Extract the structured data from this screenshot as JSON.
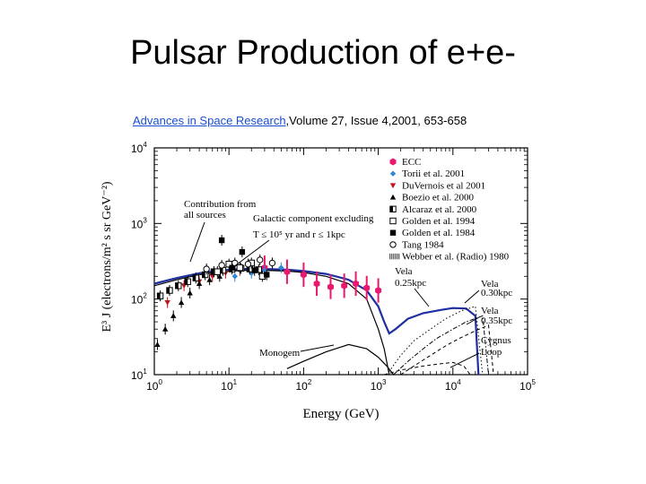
{
  "slide": {
    "title": "Pulsar Production of e+e-",
    "citation_link": "Advances in Space Research",
    "citation_rest": ",Volume 27, Issue 4,2001,  653-658"
  },
  "chart_data": {
    "type": "scatter",
    "xlabel": "Energy (GeV)",
    "ylabel": "E³ J (electrons/m² s sr GeV⁻²)",
    "xscale": "log",
    "yscale": "log",
    "xlim": [
      1,
      100000
    ],
    "ylim": [
      10,
      10000
    ],
    "x_ticks": [
      {
        "base": "10",
        "exp": "0",
        "value": 1
      },
      {
        "base": "10",
        "exp": "1",
        "value": 10
      },
      {
        "base": "10",
        "exp": "2",
        "value": 100
      },
      {
        "base": "10",
        "exp": "3",
        "value": 1000
      },
      {
        "base": "10",
        "exp": "4",
        "value": 10000
      },
      {
        "base": "10",
        "exp": "5",
        "value": 100000
      }
    ],
    "y_ticks": [
      {
        "base": "10",
        "exp": "1",
        "value": 10
      },
      {
        "base": "10",
        "exp": "2",
        "value": 100
      },
      {
        "base": "10",
        "exp": "3",
        "value": 1000
      },
      {
        "base": "10",
        "exp": "4",
        "value": 10000
      }
    ],
    "legend_placement": "top-right",
    "legend": [
      {
        "label": "ECC",
        "marker": "hexagon",
        "color": "#e8196e"
      },
      {
        "label": "Torii et al. 2001",
        "marker": "diamond",
        "color": "#2f86d6"
      },
      {
        "label": "DuVernois et al 2001",
        "marker": "triangle-down",
        "color": "#c0141e"
      },
      {
        "label": "Boezio et al. 2000",
        "marker": "triangle-up",
        "color": "#000000"
      },
      {
        "label": "Alcaraz et al. 2000",
        "marker": "square-half",
        "color": "#000000"
      },
      {
        "label": "Golden et al. 1994",
        "marker": "square-open",
        "color": "#000000"
      },
      {
        "label": "Golden et al. 1984",
        "marker": "square",
        "color": "#000000"
      },
      {
        "label": "Tang 1984",
        "marker": "circle-open",
        "color": "#000000"
      },
      {
        "label": "Webber et al. (Radio) 1980",
        "marker": "hatch",
        "color": "#000000"
      }
    ],
    "annotations": {
      "contribution": [
        "Contribution from",
        "all sources"
      ],
      "galactic": [
        "Galactic component excluding",
        "T ≤ 10⁵ yr and r ≤ 1kpc"
      ],
      "monogem": "Monogem",
      "vela1": [
        "Vela",
        "0.25kpc"
      ],
      "vela2": [
        "Vela",
        "0.30kpc"
      ],
      "vela3": [
        "Vela",
        "0.35kpc"
      ],
      "cygnus": [
        "Cygnus",
        "Loop"
      ]
    },
    "series": [
      {
        "name": "ECC",
        "x": [
          30,
          60,
          100,
          150,
          230,
          350,
          500,
          700,
          1000
        ],
        "y": [
          260,
          230,
          210,
          160,
          145,
          150,
          160,
          140,
          130
        ]
      },
      {
        "name": "Torii et al. 2001",
        "x": [
          12,
          20,
          30,
          50
        ],
        "y": [
          200,
          220,
          240,
          260
        ]
      },
      {
        "name": "DuVernois et al 2001",
        "x": [
          1.5,
          2.5,
          4,
          6,
          9,
          14
        ],
        "y": [
          90,
          150,
          170,
          200,
          220,
          240
        ]
      },
      {
        "name": "Boezio et al. 2000",
        "x": [
          1.1,
          1.4,
          1.8,
          2.3,
          3,
          4,
          5.5,
          7.5
        ],
        "y": [
          25,
          40,
          60,
          90,
          120,
          160,
          180,
          200
        ]
      },
      {
        "name": "Alcaraz et al. 2000",
        "x": [
          1.2,
          1.6,
          2.1,
          2.8,
          3.6,
          4.8,
          6.3,
          8.3,
          11,
          14.5,
          19,
          25
        ],
        "y": [
          110,
          130,
          150,
          170,
          190,
          210,
          230,
          240,
          250,
          255,
          250,
          245
        ]
      },
      {
        "name": "Golden et al. 1994",
        "x": [
          7,
          10,
          14,
          20,
          28
        ],
        "y": [
          230,
          290,
          260,
          300,
          200
        ]
      },
      {
        "name": "Golden et al. 1984",
        "x": [
          8,
          11,
          15,
          22,
          32
        ],
        "y": [
          600,
          260,
          420,
          240,
          210
        ]
      },
      {
        "name": "Tang 1984",
        "x": [
          5,
          8,
          12,
          18,
          26,
          38
        ],
        "y": [
          250,
          280,
          300,
          290,
          330,
          300
        ]
      }
    ],
    "lines": [
      {
        "name": "Contribution from all sources",
        "style": "solid-blue",
        "x": [
          1,
          2,
          4,
          8,
          15,
          30,
          60,
          100,
          200,
          400,
          700,
          1000,
          1200,
          1400,
          1700,
          2500,
          4000,
          7000,
          10000,
          15000,
          20000,
          22000
        ],
        "y": [
          160,
          190,
          220,
          240,
          250,
          250,
          245,
          235,
          215,
          180,
          130,
          80,
          50,
          35,
          40,
          55,
          65,
          72,
          76,
          75,
          60,
          10
        ]
      },
      {
        "name": "Galactic component",
        "style": "solid-black",
        "x": [
          1,
          2,
          4,
          8,
          15,
          30,
          60,
          100,
          200,
          400,
          700,
          1000,
          1200,
          1400
        ],
        "y": [
          150,
          180,
          210,
          230,
          240,
          240,
          235,
          225,
          200,
          160,
          100,
          40,
          22,
          10
        ]
      },
      {
        "name": "Monogem",
        "style": "solid-black",
        "x": [
          60,
          100,
          200,
          400,
          700,
          1000,
          1300,
          1600
        ],
        "y": [
          12,
          15,
          20,
          25,
          22,
          17,
          13,
          10
        ]
      },
      {
        "name": "Vela 0.25kpc",
        "style": "dotted",
        "x": [
          1300,
          2000,
          3000,
          5000,
          8000,
          13000,
          20000,
          25000
        ],
        "y": [
          10,
          18,
          28,
          40,
          55,
          70,
          80,
          10
        ]
      },
      {
        "name": "Vela 0.30kpc",
        "style": "dashdot",
        "x": [
          1600,
          2500,
          4000,
          6000,
          10000,
          15000,
          25000,
          30000
        ],
        "y": [
          10,
          15,
          22,
          30,
          40,
          50,
          60,
          10
        ]
      },
      {
        "name": "Vela 0.35kpc",
        "style": "dashed",
        "x": [
          2000,
          3000,
          5000,
          8000,
          12000,
          20000,
          30000,
          35000
        ],
        "y": [
          10,
          13,
          18,
          24,
          30,
          38,
          45,
          10
        ]
      },
      {
        "name": "Cygnus Loop",
        "style": "dashed",
        "x": [
          1200,
          2000,
          4000,
          7000,
          10000,
          14000,
          17000
        ],
        "y": [
          10,
          11.5,
          13,
          14,
          14.5,
          13,
          10
        ]
      }
    ],
    "grid": false
  }
}
